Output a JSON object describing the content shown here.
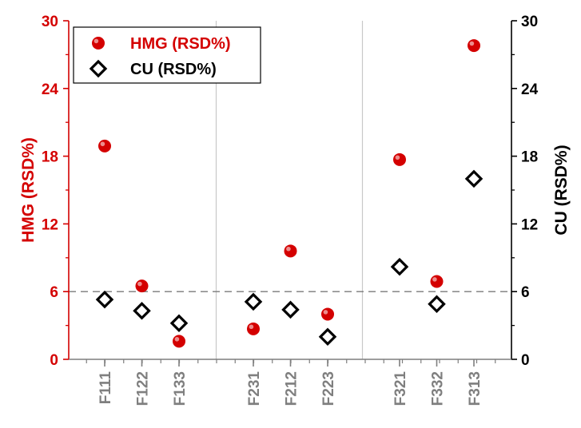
{
  "chart_data": {
    "type": "scatter",
    "categories": [
      "F111",
      "F122",
      "F133",
      "F231",
      "F212",
      "F223",
      "F321",
      "F332",
      "F313"
    ],
    "groups": [
      [
        "F111",
        "F122",
        "F133"
      ],
      [
        "F231",
        "F212",
        "F223"
      ],
      [
        "F321",
        "F332",
        "F313"
      ]
    ],
    "series": [
      {
        "name": "HMG (RSD%)",
        "axis": "left",
        "marker": "circle",
        "color": "#d40000",
        "values": [
          18.9,
          6.5,
          1.6,
          2.7,
          9.6,
          4.0,
          17.7,
          6.9,
          27.8
        ]
      },
      {
        "name": "CU (RSD%)",
        "axis": "right",
        "marker": "diamond",
        "color": "#000000",
        "values": [
          5.3,
          4.3,
          3.2,
          5.1,
          4.4,
          2.0,
          8.2,
          4.9,
          16.0
        ]
      }
    ],
    "ylabel_left": "HMG (RSD%)",
    "ylabel_right": "CU (RSD%)",
    "ylim_left": [
      0,
      30
    ],
    "ylim_right": [
      0,
      30
    ],
    "yticks_left": [
      "0",
      "6",
      "12",
      "18",
      "24",
      "30"
    ],
    "yticks_right": [
      "0",
      "6",
      "12",
      "18",
      "24",
      "30"
    ],
    "reference_line": 6,
    "left_axis_color": "#d40000",
    "right_axis_color": "#000000",
    "legend_position": "top-left",
    "grid": false
  }
}
